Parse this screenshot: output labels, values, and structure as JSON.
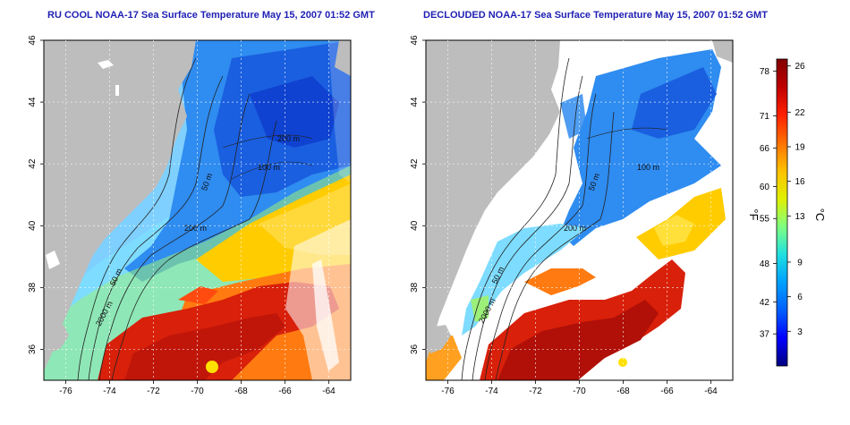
{
  "left_panel": {
    "title": "RU COOL NOAA-17 Sea Surface Temperature May 15, 2007 01:52 GMT",
    "contour_labels": [
      "200 m",
      "100 m",
      "50 m",
      "200 m",
      "50 m",
      "2000 m"
    ]
  },
  "right_panel": {
    "title": "DECLOUDED NOAA-17 Sea Surface Temperature May 15, 2007 01:52 GMT",
    "contour_labels": [
      "100 m",
      "50 m",
      "200 m",
      "50 m",
      "2000 m"
    ]
  },
  "axes": {
    "lon_ticks": [
      "-76",
      "-74",
      "-72",
      "-70",
      "-68",
      "-66",
      "-64"
    ],
    "lat_ticks": [
      "36",
      "38",
      "40",
      "42",
      "44",
      "46"
    ]
  },
  "colorbar": {
    "fahrenheit_label": "°F",
    "celsius_label": "°C",
    "fahrenheit_ticks": [
      "78",
      "71",
      "66",
      "60",
      "55",
      "48",
      "42",
      "37"
    ],
    "celsius_ticks": [
      "26",
      "22",
      "19",
      "16",
      "13",
      "9",
      "6",
      "3"
    ],
    "colors": [
      "#000080",
      "#0000ff",
      "#0060ff",
      "#00a0ff",
      "#20e0e0",
      "#80ff80",
      "#e0f000",
      "#ffc000",
      "#ff7000",
      "#ff2000",
      "#c00000",
      "#800000"
    ]
  },
  "colors": {
    "land": "#bdbdbd",
    "cloud": "#ffffff",
    "title": "#1f1fb4"
  }
}
